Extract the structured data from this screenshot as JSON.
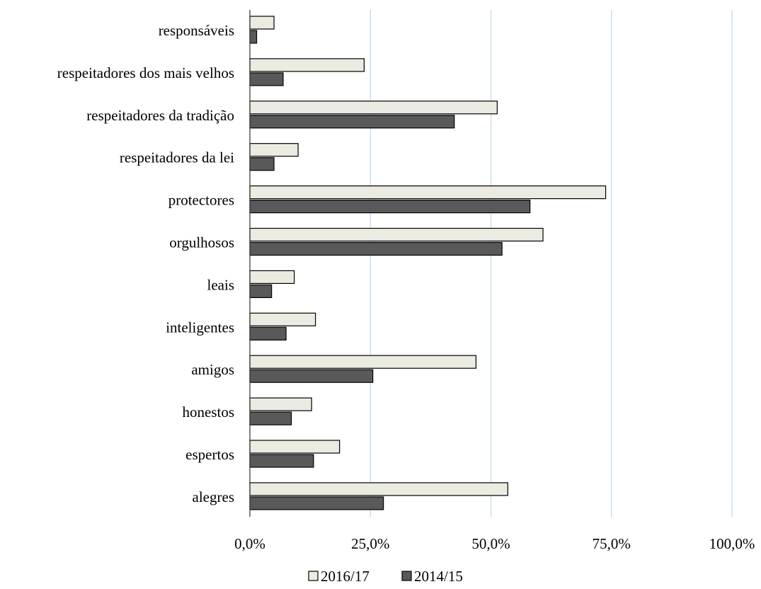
{
  "chart_data": {
    "type": "bar",
    "orientation": "horizontal",
    "title": "",
    "xlabel": "",
    "ylabel": "",
    "xlim": [
      0,
      100
    ],
    "x_ticks": [
      0,
      25,
      50,
      75,
      100
    ],
    "x_tick_labels": [
      "0,0%",
      "25,0%",
      "50,0%",
      "75,0%",
      "100,0%"
    ],
    "grid": "vertical",
    "legend_position": "bottom",
    "categories": [
      "responsáveis",
      "respeitadores dos mais velhos",
      "respeitadores da tradição",
      "respeitadores da lei",
      "protectores",
      "orgulhosos",
      "leais",
      "inteligentes",
      "amigos",
      "honestos",
      "espertos",
      "alegres"
    ],
    "series": [
      {
        "name": "2016/17",
        "color": "#ecebe2",
        "values": [
          5.0,
          23.7,
          51.3,
          10.0,
          73.8,
          60.8,
          9.2,
          13.6,
          46.9,
          12.8,
          18.6,
          53.5
        ]
      },
      {
        "name": "2014/15",
        "color": "#595959",
        "values": [
          1.4,
          6.9,
          42.4,
          5.0,
          58.1,
          52.3,
          4.5,
          7.5,
          25.5,
          8.6,
          13.2,
          27.7
        ]
      }
    ]
  }
}
